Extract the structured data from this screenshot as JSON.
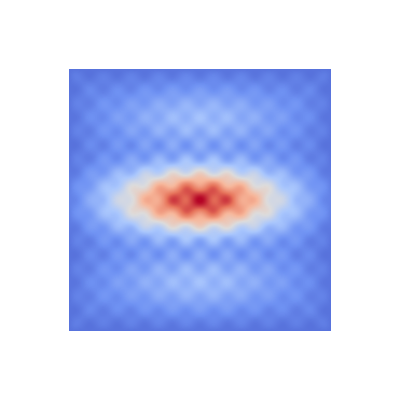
{
  "field": {
    "colormap": [
      "#3b4cc0",
      "#6f92f3",
      "#aac7fd",
      "#dddcdc",
      "#f7b89c",
      "#e7745b",
      "#b40426"
    ],
    "background": "#ffffff"
  }
}
